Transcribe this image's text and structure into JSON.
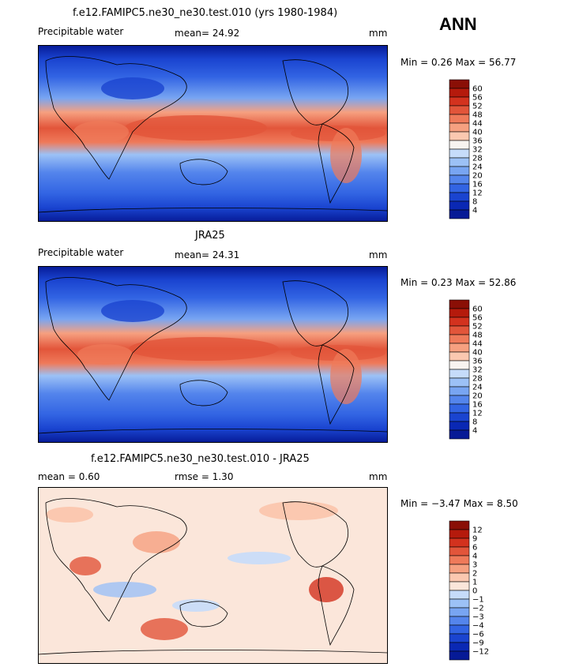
{
  "season": "ANN",
  "panels": [
    {
      "title": "f.e12.FAMIPC5.ne30_ne30.test.010 (yrs 1980-1984)",
      "left_label": "Precipitable water",
      "mean_text": "mean=  24.92",
      "units": "mm",
      "minmax_text": "Min =   0.26 Max =  56.77",
      "colorbar": {
        "labels": [
          "60",
          "56",
          "52",
          "48",
          "44",
          "40",
          "36",
          "32",
          "28",
          "24",
          "20",
          "16",
          "12",
          "8",
          "4"
        ],
        "colors": [
          "#8a0f06",
          "#b51a0c",
          "#d3321e",
          "#e2553a",
          "#ef7a5a",
          "#f6a080",
          "#fbc8b0",
          "#f8f4f0",
          "#c6dcfa",
          "#9cc1f6",
          "#78a5f2",
          "#5485ec",
          "#3264e3",
          "#1a44d0",
          "#0a28b4",
          "#061a96"
        ]
      }
    },
    {
      "title": "JRA25",
      "left_label": "Precipitable water",
      "mean_text": "mean=  24.31",
      "units": "mm",
      "minmax_text": "Min =   0.23 Max =  52.86",
      "colorbar": {
        "labels": [
          "60",
          "56",
          "52",
          "48",
          "44",
          "40",
          "36",
          "32",
          "28",
          "24",
          "20",
          "16",
          "12",
          "8",
          "4"
        ],
        "colors": [
          "#8a0f06",
          "#b51a0c",
          "#d3321e",
          "#e2553a",
          "#ef7a5a",
          "#f6a080",
          "#fbc8b0",
          "#f8f4f0",
          "#c6dcfa",
          "#9cc1f6",
          "#78a5f2",
          "#5485ec",
          "#3264e3",
          "#1a44d0",
          "#0a28b4",
          "#061a96"
        ]
      }
    },
    {
      "title": "f.e12.FAMIPC5.ne30_ne30.test.010 - JRA25",
      "mean_text": "mean =    0.60",
      "rmse_text": "rmse =    1.30",
      "units": "mm",
      "minmax_text": "Min =  −3.47 Max =   8.50",
      "colorbar": {
        "labels": [
          "12",
          "9",
          "6",
          "4",
          "3",
          "2",
          "1",
          "0",
          "−1",
          "−2",
          "−3",
          "−4",
          "−6",
          "−9",
          "−12"
        ],
        "colors": [
          "#8a0f06",
          "#b51a0c",
          "#d3321e",
          "#e2553a",
          "#ef7a5a",
          "#f6a080",
          "#fbc8b0",
          "#fbe6da",
          "#c6dcfa",
          "#9cc1f6",
          "#78a5f2",
          "#5485ec",
          "#3264e3",
          "#1a44d0",
          "#0a28b4",
          "#061a96"
        ]
      }
    }
  ],
  "map_colors": {
    "deep_blue": "#061a96",
    "mid_blue": "#3264e3",
    "light_blue": "#9cc1f6",
    "orange": "#ef7a5a",
    "red_orange": "#e2553a",
    "peach": "#fbe6da",
    "salmon": "#f6a080"
  }
}
